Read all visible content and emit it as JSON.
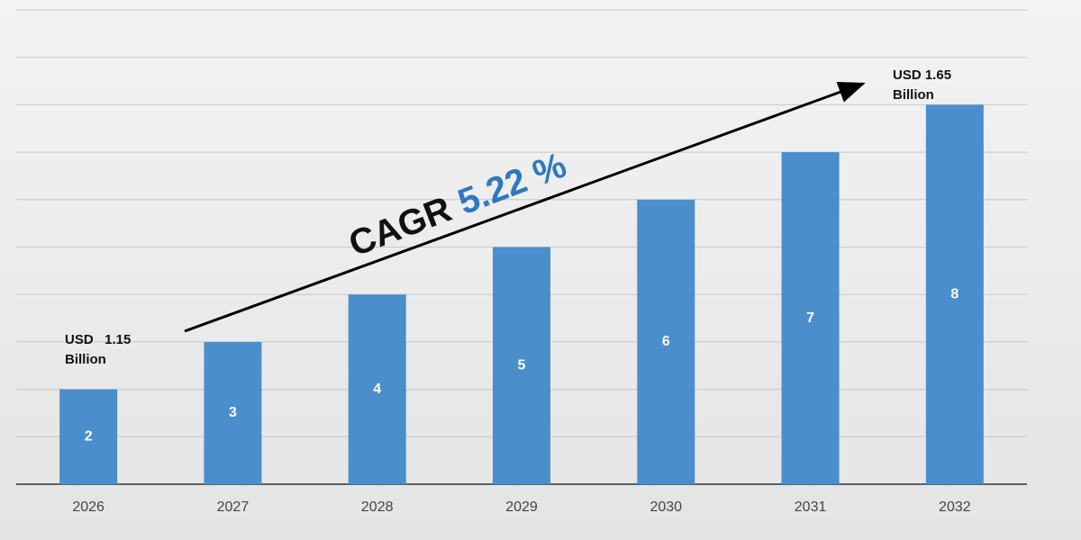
{
  "chart_data": {
    "type": "bar",
    "categories": [
      "2026",
      "2027",
      "2028",
      "2029",
      "2030",
      "2031",
      "2032"
    ],
    "values": [
      2,
      3,
      4,
      5,
      6,
      7,
      8
    ],
    "color": "#4a8ecb",
    "ylim": [
      0,
      10
    ],
    "yticks": [
      0,
      1,
      2,
      3,
      4,
      5,
      6,
      7,
      8,
      9,
      10
    ],
    "ytick_labels": false,
    "grid": true,
    "start_label": [
      "USD   1.15",
      "Billion"
    ],
    "end_label": [
      "USD 1.65",
      "Billion"
    ],
    "cagr_label": "CAGR",
    "cagr_value": "5.22 %"
  }
}
